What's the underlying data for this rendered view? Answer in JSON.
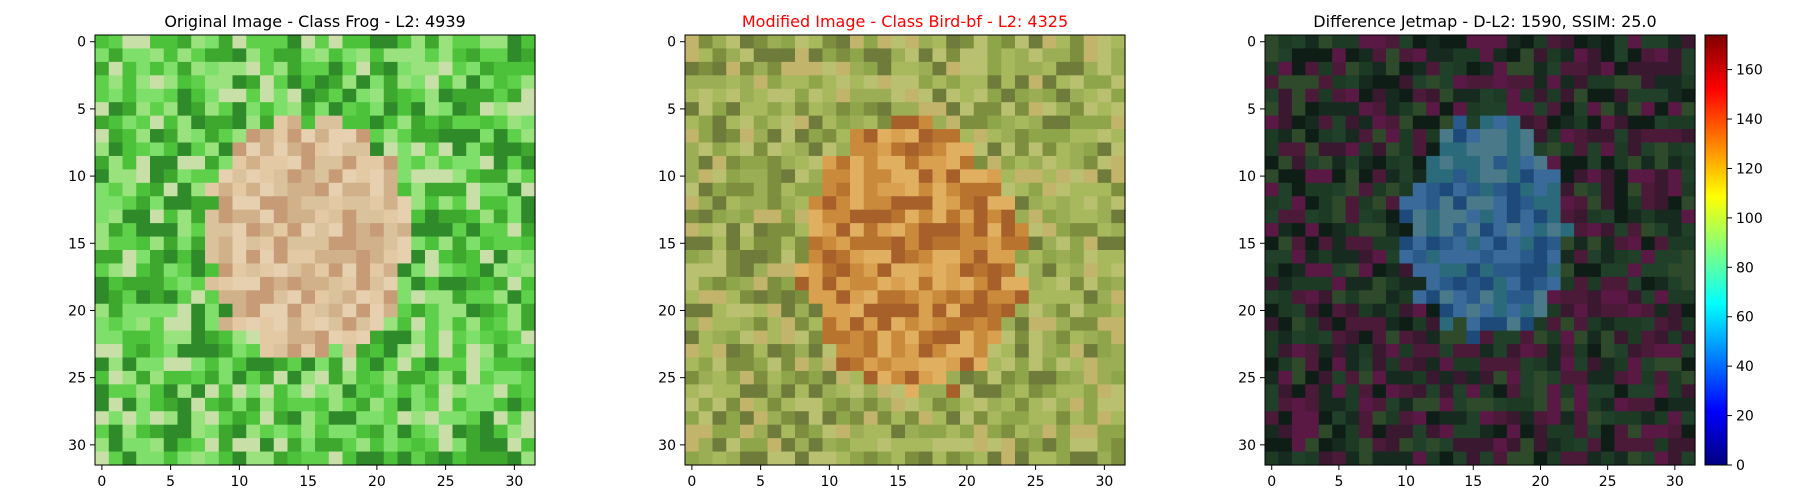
{
  "chart_data": [
    {
      "type": "heatmap",
      "title": "Original Image - Class Frog - L2: 4939",
      "title_color": "#000000",
      "grid_size": [
        32,
        32
      ],
      "x_ticks": [
        "0",
        "5",
        "10",
        "15",
        "20",
        "25",
        "30"
      ],
      "y_ticks": [
        "0",
        "5",
        "10",
        "15",
        "20",
        "25",
        "30"
      ],
      "xlim": [
        -0.5,
        31.5
      ],
      "ylim": [
        31.5,
        -0.5
      ],
      "palette": [
        "#5fd04a",
        "#4cc23a",
        "#3ea82e",
        "#7ee06a",
        "#9ae27e",
        "#c8e0a8",
        "#2f8a2a"
      ],
      "blob_palette": [
        "#d9c29c",
        "#e3c9a4",
        "#d0b18a",
        "#c79b76",
        "#e6d0b0"
      ],
      "blob": {
        "cx": 15,
        "cy": 14.5,
        "rx": 7.5,
        "ry": 9
      },
      "seed": 11
    },
    {
      "type": "heatmap",
      "title": "Modified Image - Class Bird-bf - L2: 4325",
      "title_color": "#ff0000",
      "grid_size": [
        32,
        32
      ],
      "x_ticks": [
        "0",
        "5",
        "10",
        "15",
        "20",
        "25",
        "30"
      ],
      "y_ticks": [
        "0",
        "5",
        "10",
        "15",
        "20",
        "25",
        "30"
      ],
      "xlim": [
        -0.5,
        31.5
      ],
      "ylim": [
        31.5,
        -0.5
      ],
      "palette": [
        "#a8b85c",
        "#8fa54a",
        "#c2b46a",
        "#7d8f3e",
        "#b9c070",
        "#9cae55",
        "#6f7b3a"
      ],
      "blob_palette": [
        "#c98a3c",
        "#b8742e",
        "#d9a050",
        "#a8602a",
        "#e0b060"
      ],
      "blob": {
        "cx": 16,
        "cy": 16,
        "rx": 8,
        "ry": 10
      },
      "seed": 23
    },
    {
      "type": "heatmap",
      "title": "Difference Jetmap - D-L2: 1590, SSIM: 25.0",
      "title_color": "#000000",
      "grid_size": [
        32,
        32
      ],
      "x_ticks": [
        "0",
        "5",
        "10",
        "15",
        "20",
        "25",
        "30"
      ],
      "y_ticks": [
        "0",
        "5",
        "10",
        "15",
        "20",
        "25",
        "30"
      ],
      "xlim": [
        -0.5,
        31.5
      ],
      "ylim": [
        31.5,
        -0.5
      ],
      "palette": [
        "#1c3a24",
        "#3a1830",
        "#20402a",
        "#4a1a38",
        "#162a20",
        "#2e4a2a",
        "#5a1844",
        "#0e1e16"
      ],
      "blob_palette": [
        "#2a5a8a",
        "#1e4a7a",
        "#3a6a9a",
        "#2a6a7a",
        "#4a7a8a"
      ],
      "blob": {
        "cx": 16,
        "cy": 14,
        "rx": 6,
        "ry": 8
      },
      "seed": 37,
      "colorbar": {
        "ticks": [
          "0",
          "20",
          "40",
          "60",
          "80",
          "100",
          "120",
          "140",
          "160"
        ],
        "range": [
          0,
          174
        ],
        "colormap": "jet"
      }
    }
  ]
}
